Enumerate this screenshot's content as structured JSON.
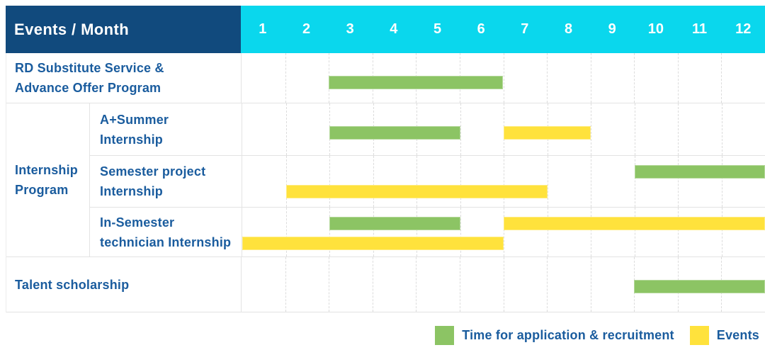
{
  "colors": {
    "header_bg": "#114A7D",
    "months_bg": "#0AD7ED",
    "header_text": "#FFFFFF",
    "label_text": "#1A5C9E",
    "grid_line": "#E3E3E3",
    "application_green": "#8CC464",
    "event_yellow": "#FFE23C"
  },
  "chart_data": {
    "type": "bar",
    "variant": "gantt",
    "corner_label": "Events / Month",
    "months": [
      "1",
      "2",
      "3",
      "4",
      "5",
      "6",
      "7",
      "8",
      "9",
      "10",
      "11",
      "12"
    ],
    "x_range": [
      1,
      12
    ],
    "grid": "dashed-vertical-month-lines",
    "legend_position": "bottom-right",
    "group_label": "Internship\nProgram",
    "rows": [
      {
        "id": "rd-substitute-service",
        "label": "RD Substitute Service &\nAdvance Offer Program",
        "group": null,
        "bars": [
          {
            "kind": "application",
            "start_month": 3,
            "end_month": 6,
            "lane": "single"
          }
        ]
      },
      {
        "id": "a-plus-summer-internship",
        "label": "A+Summer\nInternship",
        "group": "Internship Program",
        "bars": [
          {
            "kind": "application",
            "start_month": 3,
            "end_month": 5,
            "lane": "single"
          },
          {
            "kind": "event",
            "start_month": 7,
            "end_month": 8,
            "lane": "single"
          }
        ]
      },
      {
        "id": "semester-project-internship",
        "label": "Semester project\nInternship",
        "group": "Internship Program",
        "bars": [
          {
            "kind": "application",
            "start_month": 10,
            "end_month": 12,
            "lane": "top"
          },
          {
            "kind": "event",
            "start_month": 2,
            "end_month": 7,
            "lane": "bottom"
          }
        ]
      },
      {
        "id": "in-semester-technician-internship",
        "label": "In-Semester\ntechnician Internship",
        "group": "Internship Program",
        "bars": [
          {
            "kind": "application",
            "start_month": 3,
            "end_month": 5,
            "lane": "top"
          },
          {
            "kind": "event",
            "start_month": 7,
            "end_month": 12,
            "lane": "top"
          },
          {
            "kind": "event",
            "start_month": 1,
            "end_month": 6,
            "lane": "bottom"
          }
        ]
      },
      {
        "id": "talent-scholarship",
        "label": "Talent scholarship",
        "group": null,
        "bars": [
          {
            "kind": "application",
            "start_month": 10,
            "end_month": 12,
            "lane": "single"
          }
        ]
      }
    ],
    "legend": [
      {
        "kind": "application",
        "label": "Time for application & recruitment",
        "color": "#8CC464"
      },
      {
        "kind": "event",
        "label": "Events",
        "color": "#FFE23C"
      }
    ]
  }
}
